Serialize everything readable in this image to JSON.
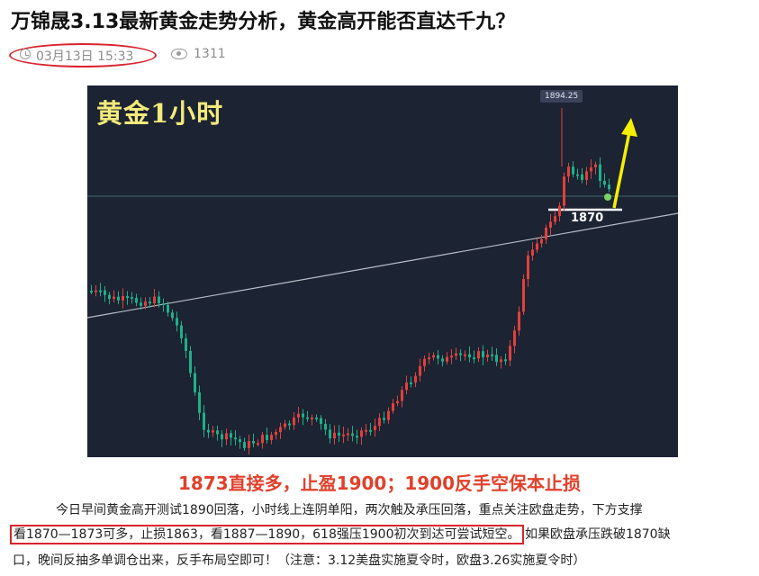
{
  "article": {
    "title": "万锦晟3.13最新黄金走势分析，黄金高开能否直达千九？",
    "date": "03月13日 15:33",
    "views": "1311"
  },
  "icons": {
    "date": "clock-icon",
    "views": "eye-icon"
  },
  "chart_image": {
    "label": "黄金1小时",
    "peak_price": "1894.25",
    "support_price": "1870"
  },
  "headline": "1873直接多，止盈1900；1900反手空保本止损",
  "body": {
    "line1": "今日早间黄金高开测试1890回落，小时线上连阴单阳，两次触及承压回落，重点关注欧盘走势，下方支撑",
    "line2_boxed": "看1870—1873可多，止损1863，看1887—1890，618强压1900初次到达可尝试短空。",
    "line2_rest": "如果欧盘承压跌破1870缺",
    "line3": "口，晚间反抽多单调仓出来，反手布局空即可！（注意：3.12美盘实施夏令时，欧盘3.26实施夏令时）"
  },
  "colors": {
    "up": "#e0413a",
    "down": "#1fb08a",
    "chart_bg": "#1c2333",
    "arrow": "#f5f000",
    "headline": "#e0412c",
    "highlight_border": "#d9232e"
  }
}
